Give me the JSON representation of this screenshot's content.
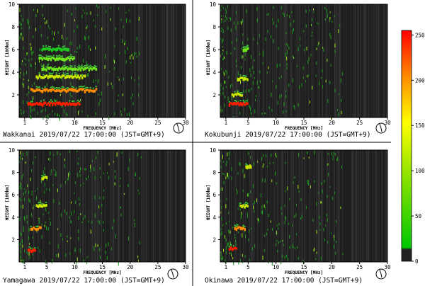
{
  "chart_data": [
    {
      "type": "heatmap",
      "station": "Wakkanai",
      "caption": "Wakkanai 2019/07/22 17:00:00 (JST=GMT+9)",
      "xlabel": "FREQUENCY [MHz]",
      "ylabel": "HEIGHT [100km]",
      "xlim": [
        0,
        30
      ],
      "ylim": [
        0,
        10
      ],
      "xticks": [
        1,
        5,
        10,
        15,
        20,
        25,
        30
      ],
      "yticks": [
        2,
        4,
        6,
        8,
        10
      ],
      "traces": [
        {
          "x0": 1.5,
          "x1": 11,
          "y": 1.2,
          "intensity": 230
        },
        {
          "x0": 2,
          "x1": 14,
          "y": 2.4,
          "intensity": 180
        },
        {
          "x0": 3,
          "x1": 12,
          "y": 3.6,
          "intensity": 150
        },
        {
          "x0": 4,
          "x1": 14,
          "y": 4.3,
          "intensity": 80
        },
        {
          "x0": 3.5,
          "x1": 10,
          "y": 5.2,
          "intensity": 60
        },
        {
          "x0": 4,
          "x1": 9,
          "y": 6.0,
          "intensity": 50
        }
      ]
    },
    {
      "type": "heatmap",
      "station": "Kokubunji",
      "caption": "Kokubunji 2019/07/22 17:00:00 (JST=GMT+9)",
      "xlabel": "FREQUENCY [MHz]",
      "ylabel": "HEIGHT [100km]",
      "xlim": [
        0,
        30
      ],
      "ylim": [
        0,
        10
      ],
      "xticks": [
        1,
        5,
        10,
        15,
        20,
        25,
        30
      ],
      "yticks": [
        2,
        4,
        6,
        8,
        10
      ],
      "traces": [
        {
          "x0": 1.5,
          "x1": 5,
          "y": 1.2,
          "intensity": 230
        },
        {
          "x0": 2,
          "x1": 4,
          "y": 2.0,
          "intensity": 150
        },
        {
          "x0": 3,
          "x1": 5,
          "y": 3.4,
          "intensity": 120
        },
        {
          "x0": 4,
          "x1": 5,
          "y": 6.0,
          "intensity": 60
        }
      ]
    },
    {
      "type": "heatmap",
      "station": "Yamagawa",
      "caption": "Yamagawa 2019/07/22 17:00:00 (JST=GMT+9)",
      "xlabel": "FREQUENCY [MHz]",
      "ylabel": "HEIGHT [100km]",
      "xlim": [
        0,
        30
      ],
      "ylim": [
        0,
        10
      ],
      "xticks": [
        1,
        5,
        10,
        15,
        20,
        25,
        30
      ],
      "yticks": [
        2,
        4,
        6,
        8,
        10
      ],
      "traces": [
        {
          "x0": 1.5,
          "x1": 3,
          "y": 1.0,
          "intensity": 230
        },
        {
          "x0": 2,
          "x1": 4,
          "y": 3.0,
          "intensity": 180
        },
        {
          "x0": 3,
          "x1": 5,
          "y": 5.0,
          "intensity": 150
        },
        {
          "x0": 4,
          "x1": 5,
          "y": 7.5,
          "intensity": 130
        }
      ]
    },
    {
      "type": "heatmap",
      "station": "Okinawa",
      "caption": "Okinawa 2019/07/22 17:00:00 (JST=GMT+9)",
      "xlabel": "FREQUENCY [MHz]",
      "ylabel": "HEIGHT [100km]",
      "xlim": [
        0,
        30
      ],
      "ylim": [
        0,
        10
      ],
      "xticks": [
        1,
        5,
        10,
        15,
        20,
        25,
        30
      ],
      "yticks": [
        2,
        4,
        6,
        8,
        10
      ],
      "traces": [
        {
          "x0": 1.5,
          "x1": 3,
          "y": 1.2,
          "intensity": 230
        },
        {
          "x0": 2.5,
          "x1": 4.5,
          "y": 3.0,
          "intensity": 180
        },
        {
          "x0": 3.5,
          "x1": 5,
          "y": 5.0,
          "intensity": 150
        },
        {
          "x0": 4.5,
          "x1": 5.5,
          "y": 8.5,
          "intensity": 120
        }
      ]
    }
  ],
  "colorbar": {
    "min": 0,
    "max": 255,
    "ticks": [
      0,
      50,
      100,
      150,
      200,
      250
    ],
    "colors": [
      "#000000",
      "#00c800",
      "#ffff00",
      "#ff0000"
    ]
  },
  "colors": {
    "plot_background": "#1e1e1e",
    "divider": "#000000"
  }
}
